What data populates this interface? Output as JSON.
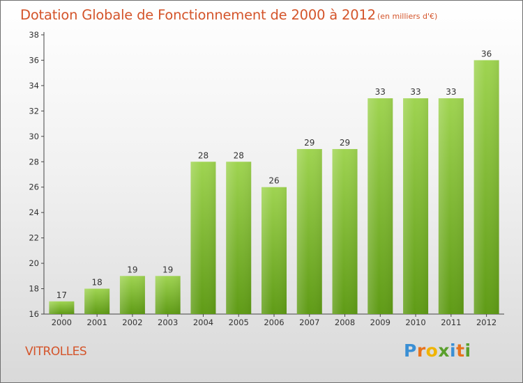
{
  "page": {
    "title": "Dotation Globale de Fonctionnement de 2000 à 2012",
    "unit_note": "(en milliers d'€)",
    "city": "VITROLLES",
    "logo": {
      "letters": [
        "P",
        "r",
        "o",
        "x",
        "i",
        "t",
        "i"
      ],
      "colors": [
        "#3a8fd4",
        "#e8731c",
        "#f0b400",
        "#5aa02c",
        "#3a8fd4",
        "#e8731c",
        "#5aa02c"
      ]
    }
  },
  "chart_data": {
    "type": "bar",
    "categories": [
      "2000",
      "2001",
      "2002",
      "2003",
      "2004",
      "2005",
      "2006",
      "2007",
      "2008",
      "2009",
      "2010",
      "2011",
      "2012"
    ],
    "values": [
      17,
      18,
      19,
      19,
      28,
      28,
      26,
      29,
      29,
      33,
      33,
      33,
      36
    ],
    "ylim": [
      16,
      38
    ],
    "yticks": [
      16,
      18,
      20,
      22,
      24,
      26,
      28,
      30,
      32,
      34,
      36,
      38
    ],
    "grid": false,
    "legend": "none",
    "bar_color_top": "#9fd451",
    "bar_color_bottom": "#5f9b16"
  }
}
